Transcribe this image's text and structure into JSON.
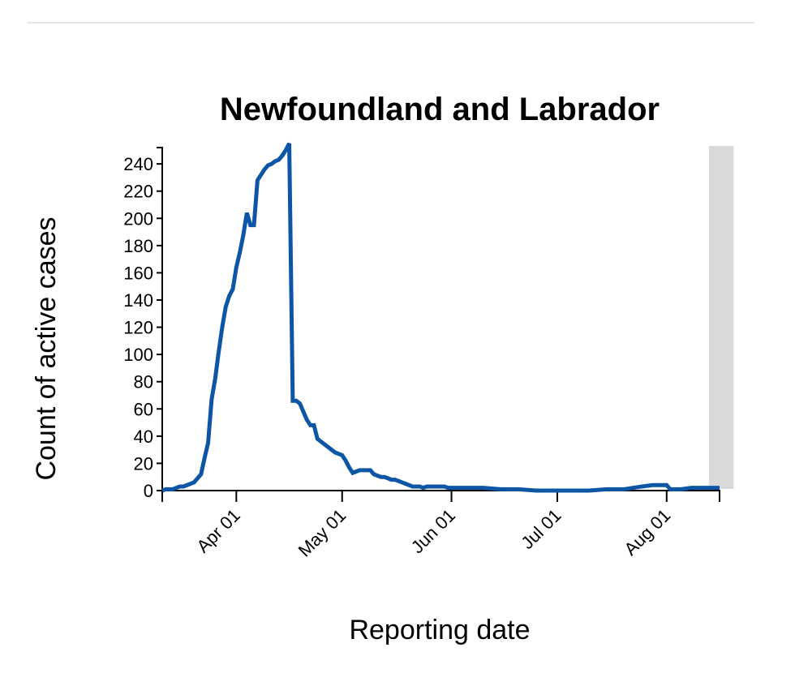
{
  "chart_data": {
    "type": "line",
    "title": "Newfoundland and Labrador",
    "x_label": "Reporting date",
    "y_label": "Count of active cases",
    "x": [
      "03-11",
      "03-12",
      "03-13",
      "03-14",
      "03-15",
      "03-16",
      "03-17",
      "03-18",
      "03-19",
      "03-20",
      "03-21",
      "03-22",
      "03-23",
      "03-24",
      "03-25",
      "03-26",
      "03-27",
      "03-28",
      "03-29",
      "03-30",
      "03-31",
      "04-01",
      "04-02",
      "04-03",
      "04-04",
      "04-05",
      "04-06",
      "04-07",
      "04-08",
      "04-09",
      "04-10",
      "04-11",
      "04-12",
      "04-13",
      "04-14",
      "04-15",
      "04-16",
      "04-17",
      "04-18",
      "04-19",
      "04-20",
      "04-21",
      "04-22",
      "04-23",
      "04-24",
      "04-25",
      "04-26",
      "04-27",
      "04-28",
      "04-29",
      "04-30",
      "05-01",
      "05-02",
      "05-03",
      "05-04",
      "05-05",
      "05-06",
      "05-07",
      "05-08",
      "05-09",
      "05-10",
      "05-11",
      "05-12",
      "05-13",
      "05-14",
      "05-15",
      "05-16",
      "05-17",
      "05-18",
      "05-19",
      "05-20",
      "05-21",
      "05-22",
      "05-23",
      "05-24",
      "05-25",
      "05-26",
      "05-27",
      "05-28",
      "05-29",
      "05-30",
      "05-31",
      "06-05",
      "06-10",
      "06-15",
      "06-20",
      "06-25",
      "07-01",
      "07-05",
      "07-10",
      "07-15",
      "07-20",
      "07-25",
      "07-28",
      "08-01",
      "08-02",
      "08-05",
      "08-08",
      "08-12",
      "08-16"
    ],
    "values": [
      0,
      1,
      1,
      1,
      2,
      3,
      3,
      4,
      5,
      6,
      9,
      12,
      24,
      35,
      67,
      82,
      102,
      120,
      135,
      143,
      148,
      164,
      175,
      188,
      204,
      195,
      195,
      228,
      232,
      236,
      239,
      240,
      242,
      243,
      246,
      250,
      255,
      66,
      66,
      64,
      58,
      52,
      48,
      48,
      38,
      36,
      34,
      32,
      30,
      28,
      27,
      26,
      22,
      17,
      13,
      14,
      15,
      15,
      15,
      15,
      12,
      11,
      10,
      10,
      9,
      8,
      8,
      7,
      6,
      5,
      4,
      3,
      3,
      3,
      2,
      3,
      3,
      3,
      3,
      3,
      3,
      2,
      2,
      2,
      1,
      1,
      0,
      0,
      0,
      0,
      1,
      1,
      3,
      4,
      4,
      1,
      1,
      2,
      2,
      2
    ],
    "color": "#0d56a6",
    "xlim": [
      "03-11",
      "08-16"
    ],
    "xticks": [
      {
        "value": "04-01",
        "label": "Apr 01"
      },
      {
        "value": "05-01",
        "label": "May 01"
      },
      {
        "value": "06-01",
        "label": "Jun 01"
      },
      {
        "value": "07-01",
        "label": "Jul 01"
      },
      {
        "value": "08-01",
        "label": "Aug 01"
      }
    ],
    "ylim": [
      0,
      252
    ],
    "yticks": [
      0,
      20,
      40,
      60,
      80,
      100,
      120,
      140,
      160,
      180,
      200,
      220,
      240
    ],
    "shaded_range": {
      "x": [
        "08-13",
        "08-20"
      ],
      "color": "#d9d9d9"
    }
  }
}
